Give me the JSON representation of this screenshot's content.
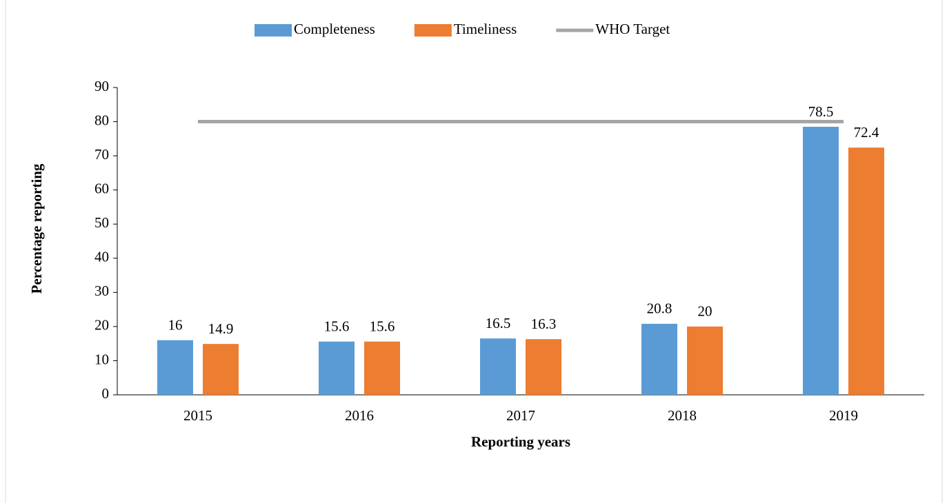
{
  "chart_data": {
    "type": "bar",
    "xlabel": "Reporting years",
    "ylabel": "Percentage reporting",
    "categories": [
      "2015",
      "2016",
      "2017",
      "2018",
      "2019"
    ],
    "series": [
      {
        "name": "Completeness",
        "color": "#5b9bd5",
        "values": [
          16,
          15.6,
          16.5,
          20.8,
          78.5
        ]
      },
      {
        "name": "Timeliness",
        "color": "#ed7d31",
        "values": [
          14.9,
          15.6,
          16.3,
          20,
          72.4
        ]
      },
      {
        "name": "WHO Target",
        "type": "line",
        "color": "#a5a5a5",
        "values": [
          80,
          80,
          80,
          80,
          80
        ]
      }
    ],
    "ylim": [
      0,
      90
    ],
    "yticks": [
      0,
      10,
      20,
      30,
      40,
      50,
      60,
      70,
      80,
      90
    ],
    "grid": false,
    "legend": "top"
  }
}
